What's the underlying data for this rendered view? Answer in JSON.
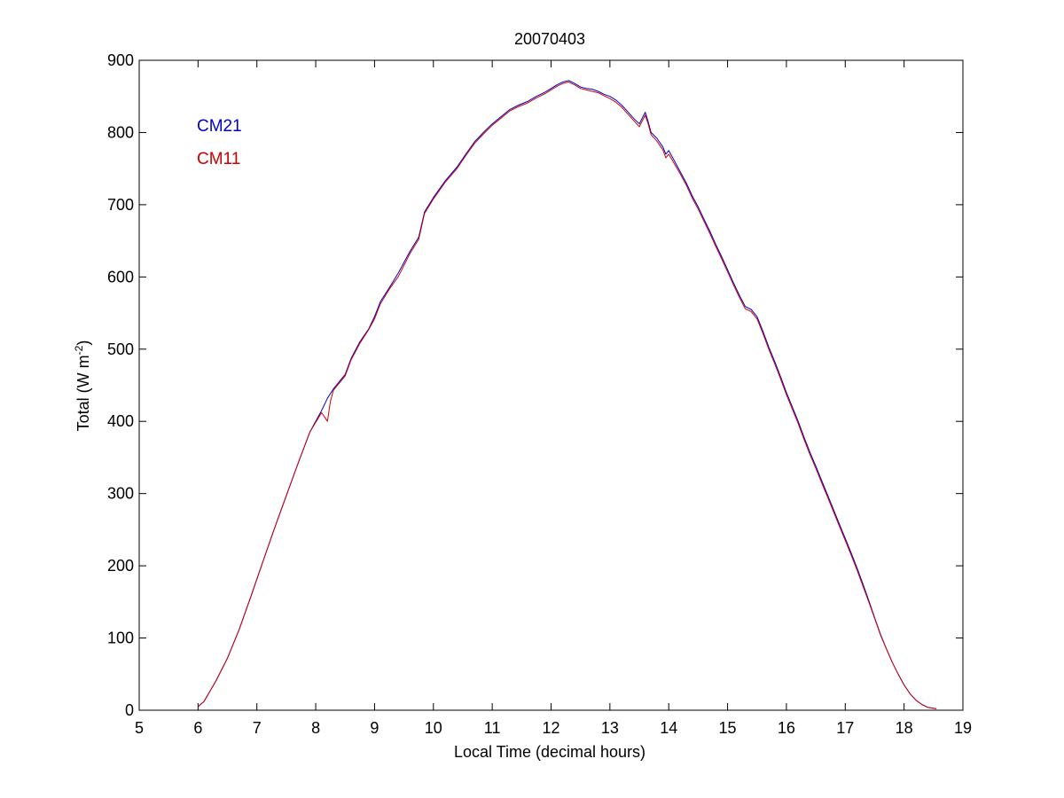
{
  "chart_data": {
    "type": "line",
    "title": "20070403",
    "xlabel": "Local Time (decimal hours)",
    "ylabel_main": "Total (W m",
    "ylabel_sup": "-2",
    "ylabel_close": ")",
    "xlim": [
      5,
      19
    ],
    "ylim": [
      0,
      900
    ],
    "xticks": [
      5,
      6,
      7,
      8,
      9,
      10,
      11,
      12,
      13,
      14,
      15,
      16,
      17,
      18,
      19
    ],
    "yticks": [
      0,
      100,
      200,
      300,
      400,
      500,
      600,
      700,
      800,
      900
    ],
    "grid": false,
    "legend_position": "top-left",
    "series": [
      {
        "name": "CM21",
        "color": "#0000cc",
        "x": [
          6.0,
          6.1,
          6.3,
          6.5,
          6.7,
          6.9,
          7.1,
          7.3,
          7.5,
          7.7,
          7.9,
          8.1,
          8.2,
          8.3,
          8.5,
          8.6,
          8.75,
          8.9,
          9.0,
          9.1,
          9.25,
          9.4,
          9.5,
          9.6,
          9.75,
          9.85,
          10.0,
          10.2,
          10.4,
          10.55,
          10.7,
          10.85,
          11.0,
          11.15,
          11.3,
          11.45,
          11.6,
          11.75,
          11.9,
          12.0,
          12.1,
          12.2,
          12.3,
          12.4,
          12.5,
          12.6,
          12.7,
          12.8,
          12.9,
          13.0,
          13.1,
          13.2,
          13.3,
          13.4,
          13.5,
          13.6,
          13.65,
          13.7,
          13.8,
          13.9,
          13.95,
          14.0,
          14.1,
          14.2,
          14.3,
          14.4,
          14.5,
          14.6,
          14.7,
          14.8,
          14.9,
          15.0,
          15.1,
          15.2,
          15.3,
          15.4,
          15.5,
          15.6,
          15.7,
          15.8,
          15.9,
          16.0,
          16.1,
          16.2,
          16.3,
          16.4,
          16.5,
          16.6,
          16.7,
          16.8,
          16.9,
          17.0,
          17.1,
          17.2,
          17.3,
          17.4,
          17.5,
          17.6,
          17.7,
          17.8,
          17.9,
          18.0,
          18.1,
          18.2,
          18.3,
          18.4,
          18.55
        ],
        "y": [
          5,
          12,
          40,
          72,
          112,
          158,
          205,
          252,
          297,
          342,
          385,
          415,
          432,
          445,
          465,
          487,
          510,
          528,
          545,
          566,
          585,
          605,
          620,
          635,
          655,
          690,
          710,
          733,
          752,
          770,
          787,
          800,
          812,
          822,
          832,
          838,
          843,
          850,
          856,
          861,
          866,
          870,
          872,
          868,
          863,
          861,
          860,
          857,
          853,
          850,
          845,
          838,
          829,
          820,
          812,
          828,
          815,
          800,
          792,
          780,
          770,
          775,
          760,
          745,
          730,
          712,
          697,
          680,
          663,
          645,
          628,
          610,
          592,
          575,
          559,
          555,
          545,
          525,
          503,
          483,
          462,
          440,
          420,
          400,
          378,
          357,
          338,
          318,
          298,
          278,
          258,
          238,
          218,
          197,
          175,
          152,
          128,
          105,
          85,
          66,
          50,
          35,
          23,
          14,
          8,
          4,
          2
        ]
      },
      {
        "name": "CM11",
        "color": "#cc0000",
        "x": [
          6.0,
          6.1,
          6.3,
          6.5,
          6.7,
          6.9,
          7.1,
          7.3,
          7.5,
          7.7,
          7.9,
          8.1,
          8.2,
          8.25,
          8.3,
          8.5,
          8.6,
          8.75,
          8.9,
          9.0,
          9.1,
          9.25,
          9.4,
          9.5,
          9.6,
          9.75,
          9.85,
          10.0,
          10.2,
          10.4,
          10.55,
          10.7,
          10.85,
          11.0,
          11.15,
          11.3,
          11.45,
          11.6,
          11.75,
          11.9,
          12.0,
          12.1,
          12.2,
          12.3,
          12.4,
          12.5,
          12.6,
          12.7,
          12.8,
          12.9,
          13.0,
          13.1,
          13.2,
          13.3,
          13.4,
          13.5,
          13.6,
          13.65,
          13.7,
          13.8,
          13.9,
          13.95,
          14.0,
          14.1,
          14.2,
          14.3,
          14.4,
          14.5,
          14.6,
          14.7,
          14.8,
          14.9,
          15.0,
          15.1,
          15.2,
          15.3,
          15.4,
          15.5,
          15.6,
          15.7,
          15.8,
          15.9,
          16.0,
          16.1,
          16.2,
          16.3,
          16.4,
          16.5,
          16.6,
          16.7,
          16.8,
          16.9,
          17.0,
          17.1,
          17.2,
          17.3,
          17.4,
          17.5,
          17.6,
          17.7,
          17.8,
          17.9,
          18.0,
          18.1,
          18.2,
          18.3,
          18.4,
          18.55
        ],
        "y": [
          5,
          12,
          40,
          72,
          112,
          158,
          205,
          252,
          297,
          342,
          385,
          412,
          400,
          428,
          443,
          463,
          485,
          508,
          527,
          542,
          563,
          583,
          600,
          616,
          632,
          652,
          688,
          708,
          731,
          750,
          768,
          785,
          798,
          810,
          820,
          830,
          836,
          841,
          848,
          854,
          859,
          864,
          868,
          870,
          866,
          861,
          859,
          857,
          855,
          851,
          847,
          842,
          835,
          826,
          817,
          808,
          824,
          812,
          797,
          788,
          776,
          765,
          770,
          756,
          742,
          727,
          709,
          694,
          677,
          660,
          642,
          625,
          607,
          589,
          572,
          556,
          552,
          542,
          522,
          500,
          480,
          459,
          437,
          417,
          397,
          375,
          354,
          335,
          315,
          295,
          275,
          255,
          235,
          215,
          194,
          172,
          150,
          127,
          104,
          85,
          66,
          50,
          35,
          23,
          14,
          8,
          4,
          2
        ]
      }
    ]
  }
}
